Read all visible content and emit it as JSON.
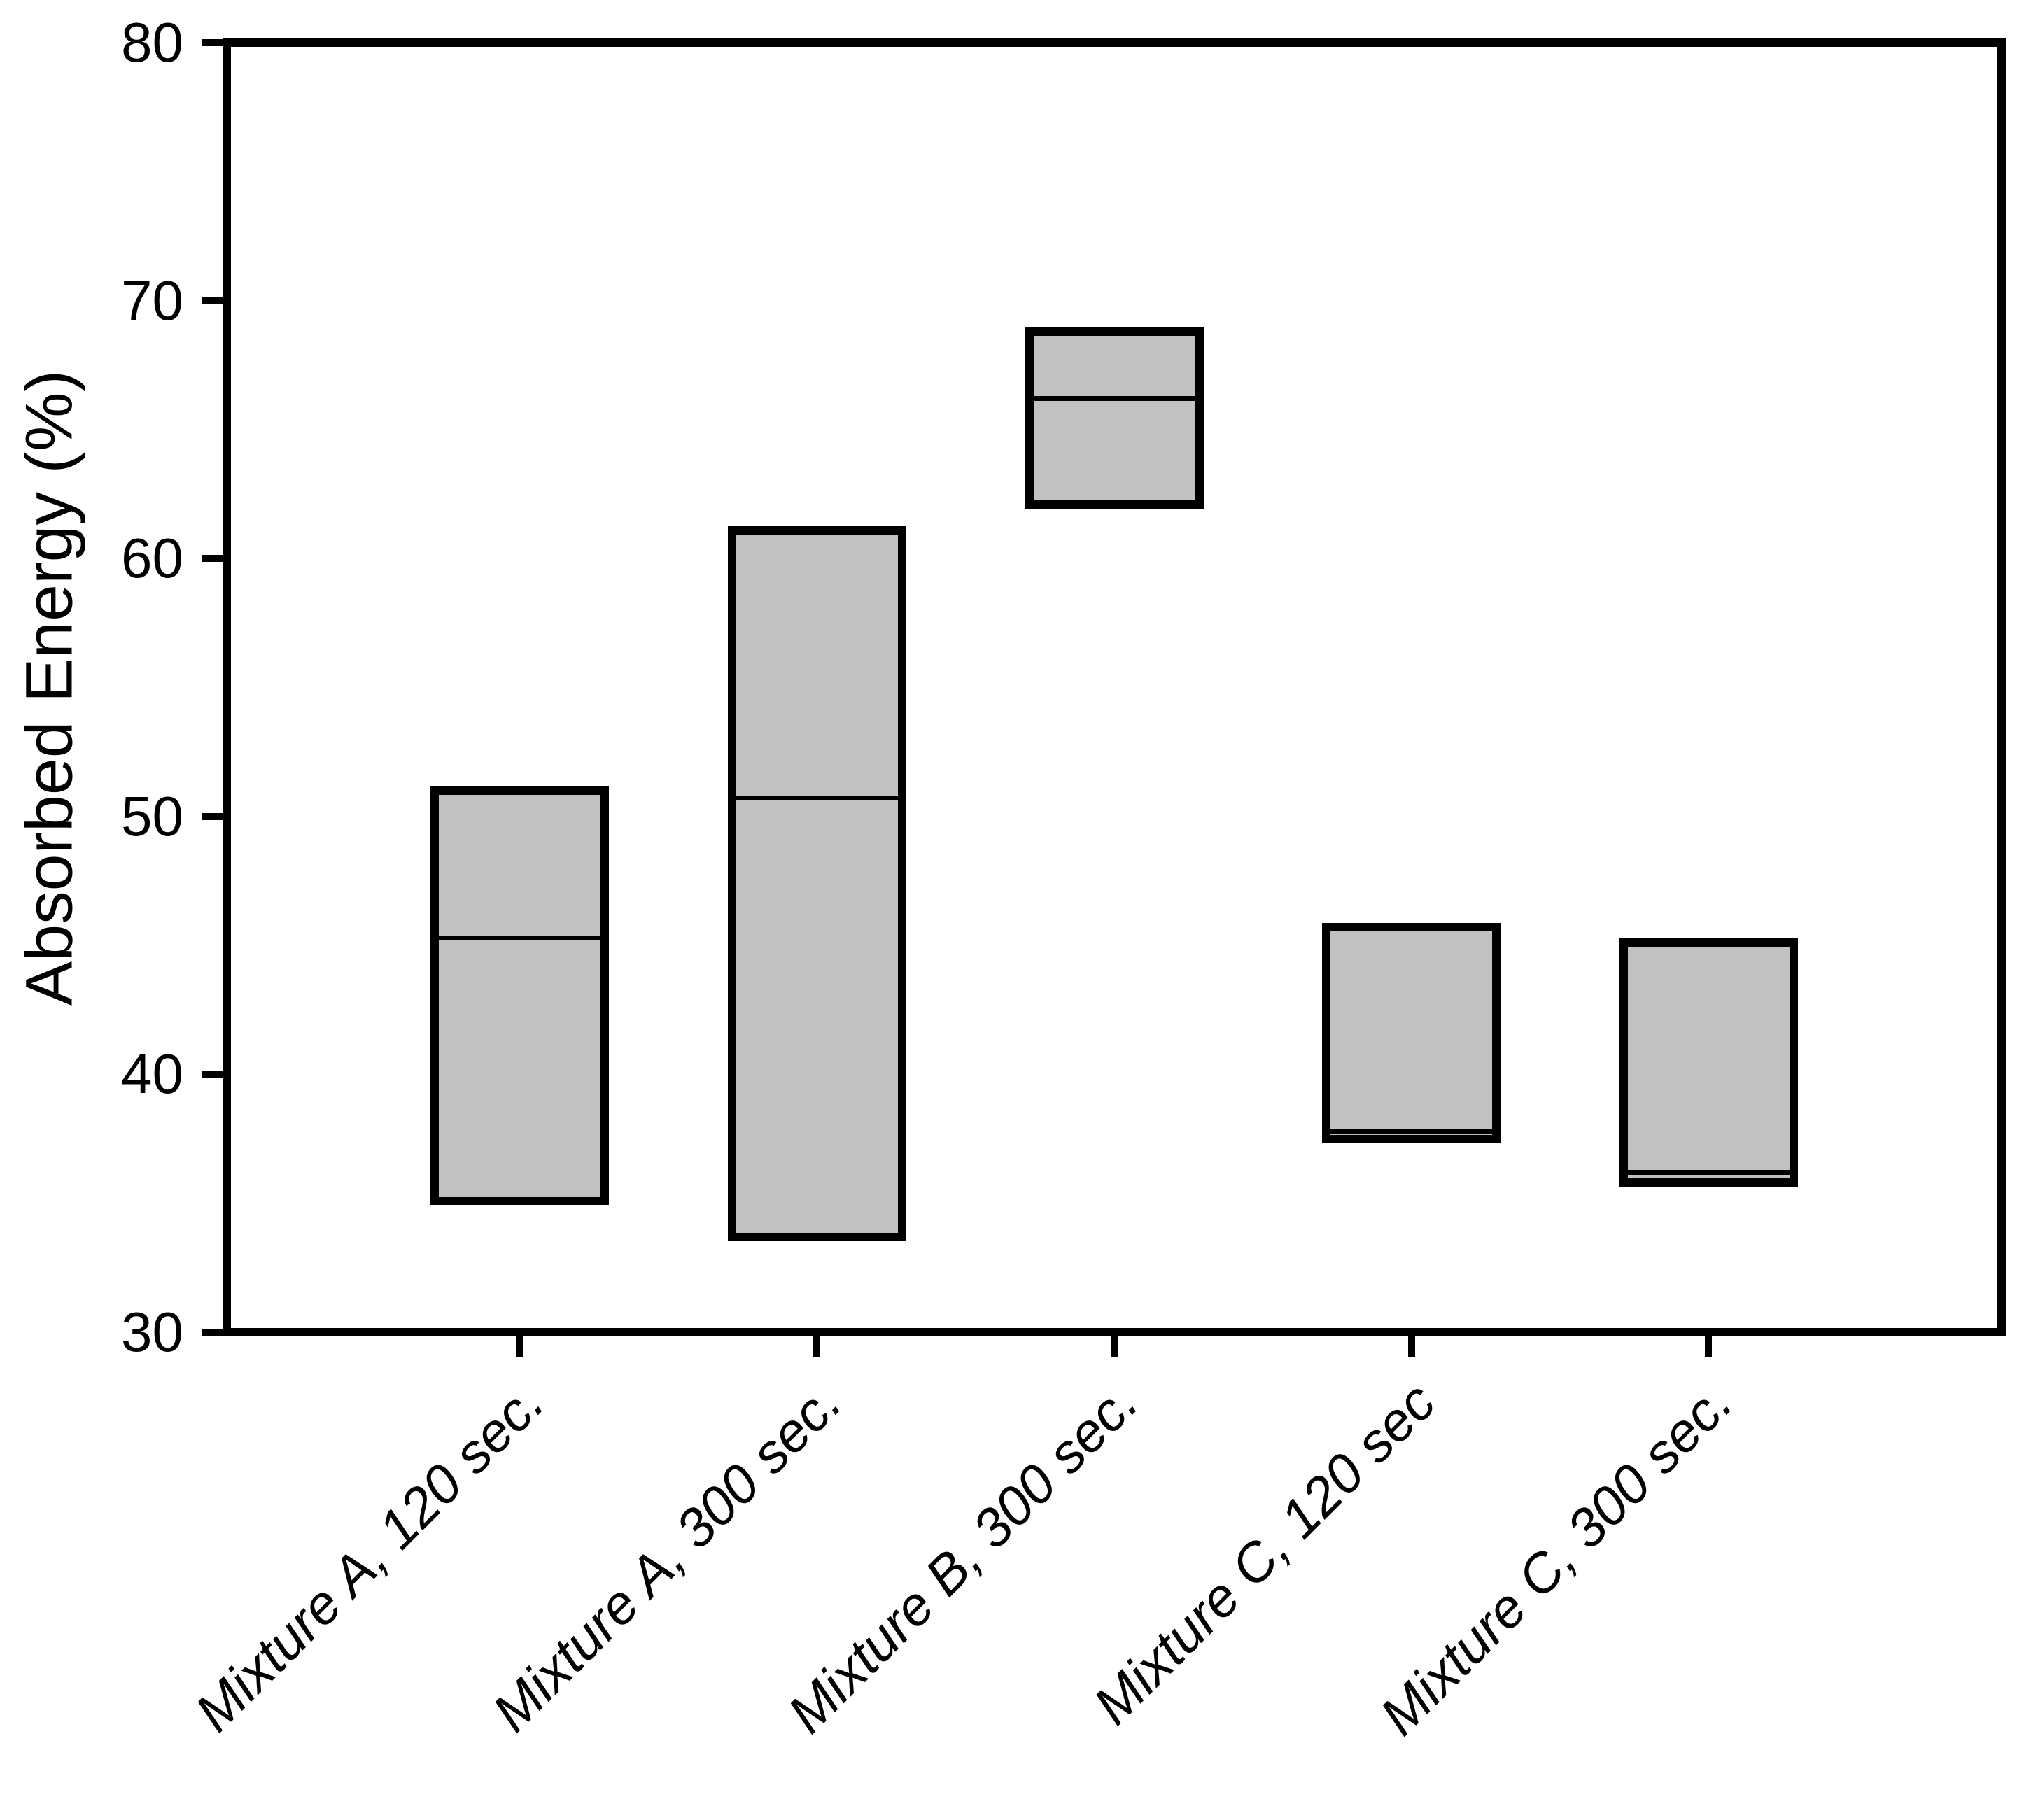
{
  "chart_data": {
    "type": "box",
    "title": "",
    "xlabel": "",
    "ylabel": "Absorbed Energy (%)",
    "ylim": [
      30,
      80
    ],
    "yticks": [
      30,
      40,
      50,
      60,
      70,
      80
    ],
    "grid": false,
    "legend": "none",
    "box_fill_color": "#c1c1c1",
    "box_border_color": "#000000",
    "categories": [
      "Mixture A, 120 sec.",
      "Mixture A, 300 sec.",
      "Mixture B, 300 sec.",
      "Mixture C, 120 sec",
      "Mixture C, 300 sec."
    ],
    "boxes": [
      {
        "label": "Mixture A, 120 sec.",
        "min": 35.1,
        "median": 45.3,
        "max": 51.0
      },
      {
        "label": "Mixture A, 300 sec.",
        "min": 33.7,
        "median": 50.7,
        "max": 61.1
      },
      {
        "label": "Mixture B, 300 sec.",
        "min": 62.1,
        "median": 66.2,
        "max": 68.8
      },
      {
        "label": "Mixture C, 120 sec",
        "min": 37.5,
        "median": 37.8,
        "max": 45.7
      },
      {
        "label": "Mixture C, 300 sec.",
        "min": 35.8,
        "median": 36.2,
        "max": 45.1
      }
    ]
  }
}
